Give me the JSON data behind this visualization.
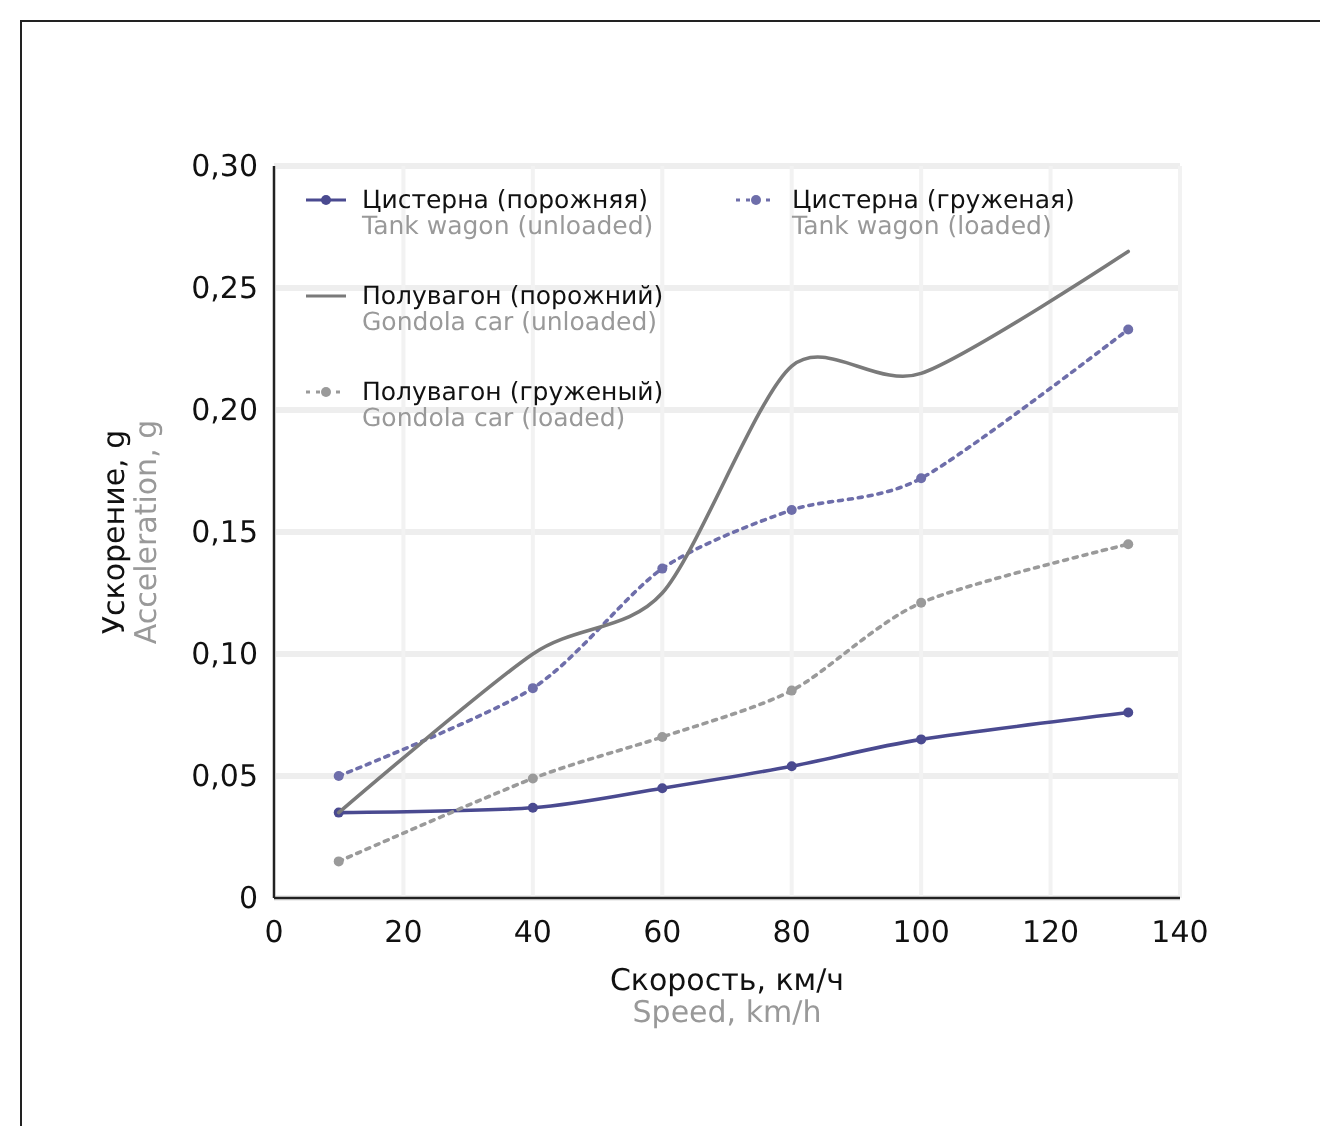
{
  "chart_data": {
    "type": "line",
    "xlabel": "Скорость, км/ч\nSpeed, km/h",
    "ylabel": "Ускорение, g\nAcceleration, g",
    "x": [
      10,
      40,
      60,
      80,
      100,
      132
    ],
    "series": [
      {
        "name": "Цистерна (порожняя)\nTank wagon (unloaded)",
        "color": "#4a4a90",
        "values": [
          0.035,
          0.037,
          0.045,
          0.054,
          0.065,
          0.076
        ],
        "line_style": "solid"
      },
      {
        "name": "Цистерна (груженая)\nTank wagon (loaded)",
        "color": "#6e6eaa",
        "values": [
          0.05,
          0.086,
          0.135,
          0.159,
          0.172,
          0.233
        ],
        "line_style": "dotted"
      },
      {
        "name": "Полувагон (порожний)\nGondola car (unloaded)",
        "color": "#7a7a7a",
        "values": [
          0.035,
          0.1,
          0.125,
          0.218,
          0.215,
          0.265
        ],
        "line_style": "solid",
        "marker": "none"
      },
      {
        "name": "Полувагон (груженый)\nGondola car (loaded)",
        "color": "#9a9a9a",
        "values": [
          0.015,
          0.049,
          0.066,
          0.085,
          0.121,
          0.145
        ],
        "line_style": "dotted"
      }
    ],
    "xlim": [
      0,
      140
    ],
    "xticks": [
      0,
      20,
      40,
      60,
      80,
      100,
      120,
      140
    ],
    "ylim": [
      0,
      0.3
    ],
    "yticks": [
      0,
      {
        "value": 0.05,
        "label": "0,05"
      },
      {
        "value": 0.1,
        "label": "0,10"
      },
      {
        "value": 0.15,
        "label": "0,15"
      },
      {
        "value": 0.2,
        "label": "0,20"
      },
      {
        "value": 0.25,
        "label": "0,25"
      },
      {
        "value": 0.3,
        "label": "0,30"
      }
    ],
    "grid": true,
    "legend": "top left",
    "marker": "circle"
  }
}
